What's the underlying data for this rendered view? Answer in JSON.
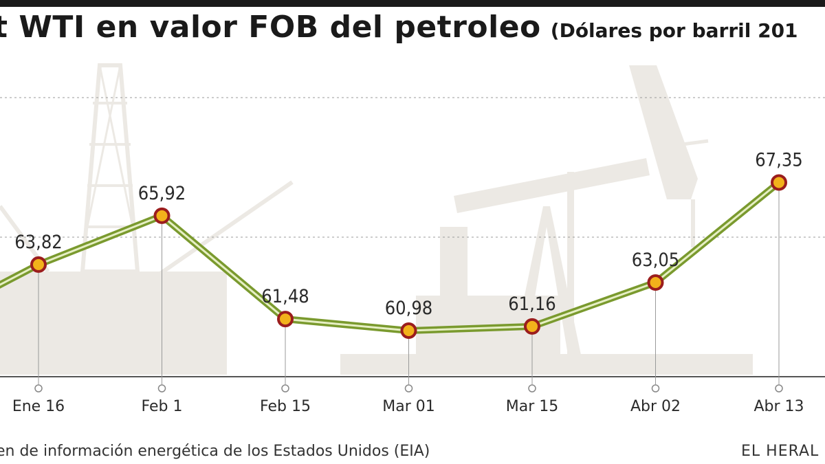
{
  "title": {
    "main": "t WTI en valor FOB del petroleo",
    "sub": "(Dólares por barril 201"
  },
  "chart_data": {
    "type": "line",
    "categories": [
      "Ene 16",
      "Feb 1",
      "Feb 15",
      "Mar 01",
      "Mar 15",
      "Abr 02",
      "Abr 13"
    ],
    "values": [
      63.82,
      65.92,
      61.48,
      60.98,
      61.16,
      63.05,
      67.35
    ],
    "value_labels": [
      "63,82",
      "65,92",
      "61,48",
      "60,98",
      "61,16",
      "63,05",
      "67,35"
    ],
    "leading_value": 62.8,
    "ylim": [
      59,
      71
    ],
    "grid": true,
    "colors": {
      "line": "#7a9a2e",
      "line_highlight": "#e6efc4",
      "marker_fill": "#f2b21b",
      "marker_stroke": "#9b1d1d",
      "silhouette": "#ece9e4"
    }
  },
  "footer": {
    "source": "en de información energética de los Estados Unidos (EIA)",
    "brand": "EL HERAL"
  }
}
